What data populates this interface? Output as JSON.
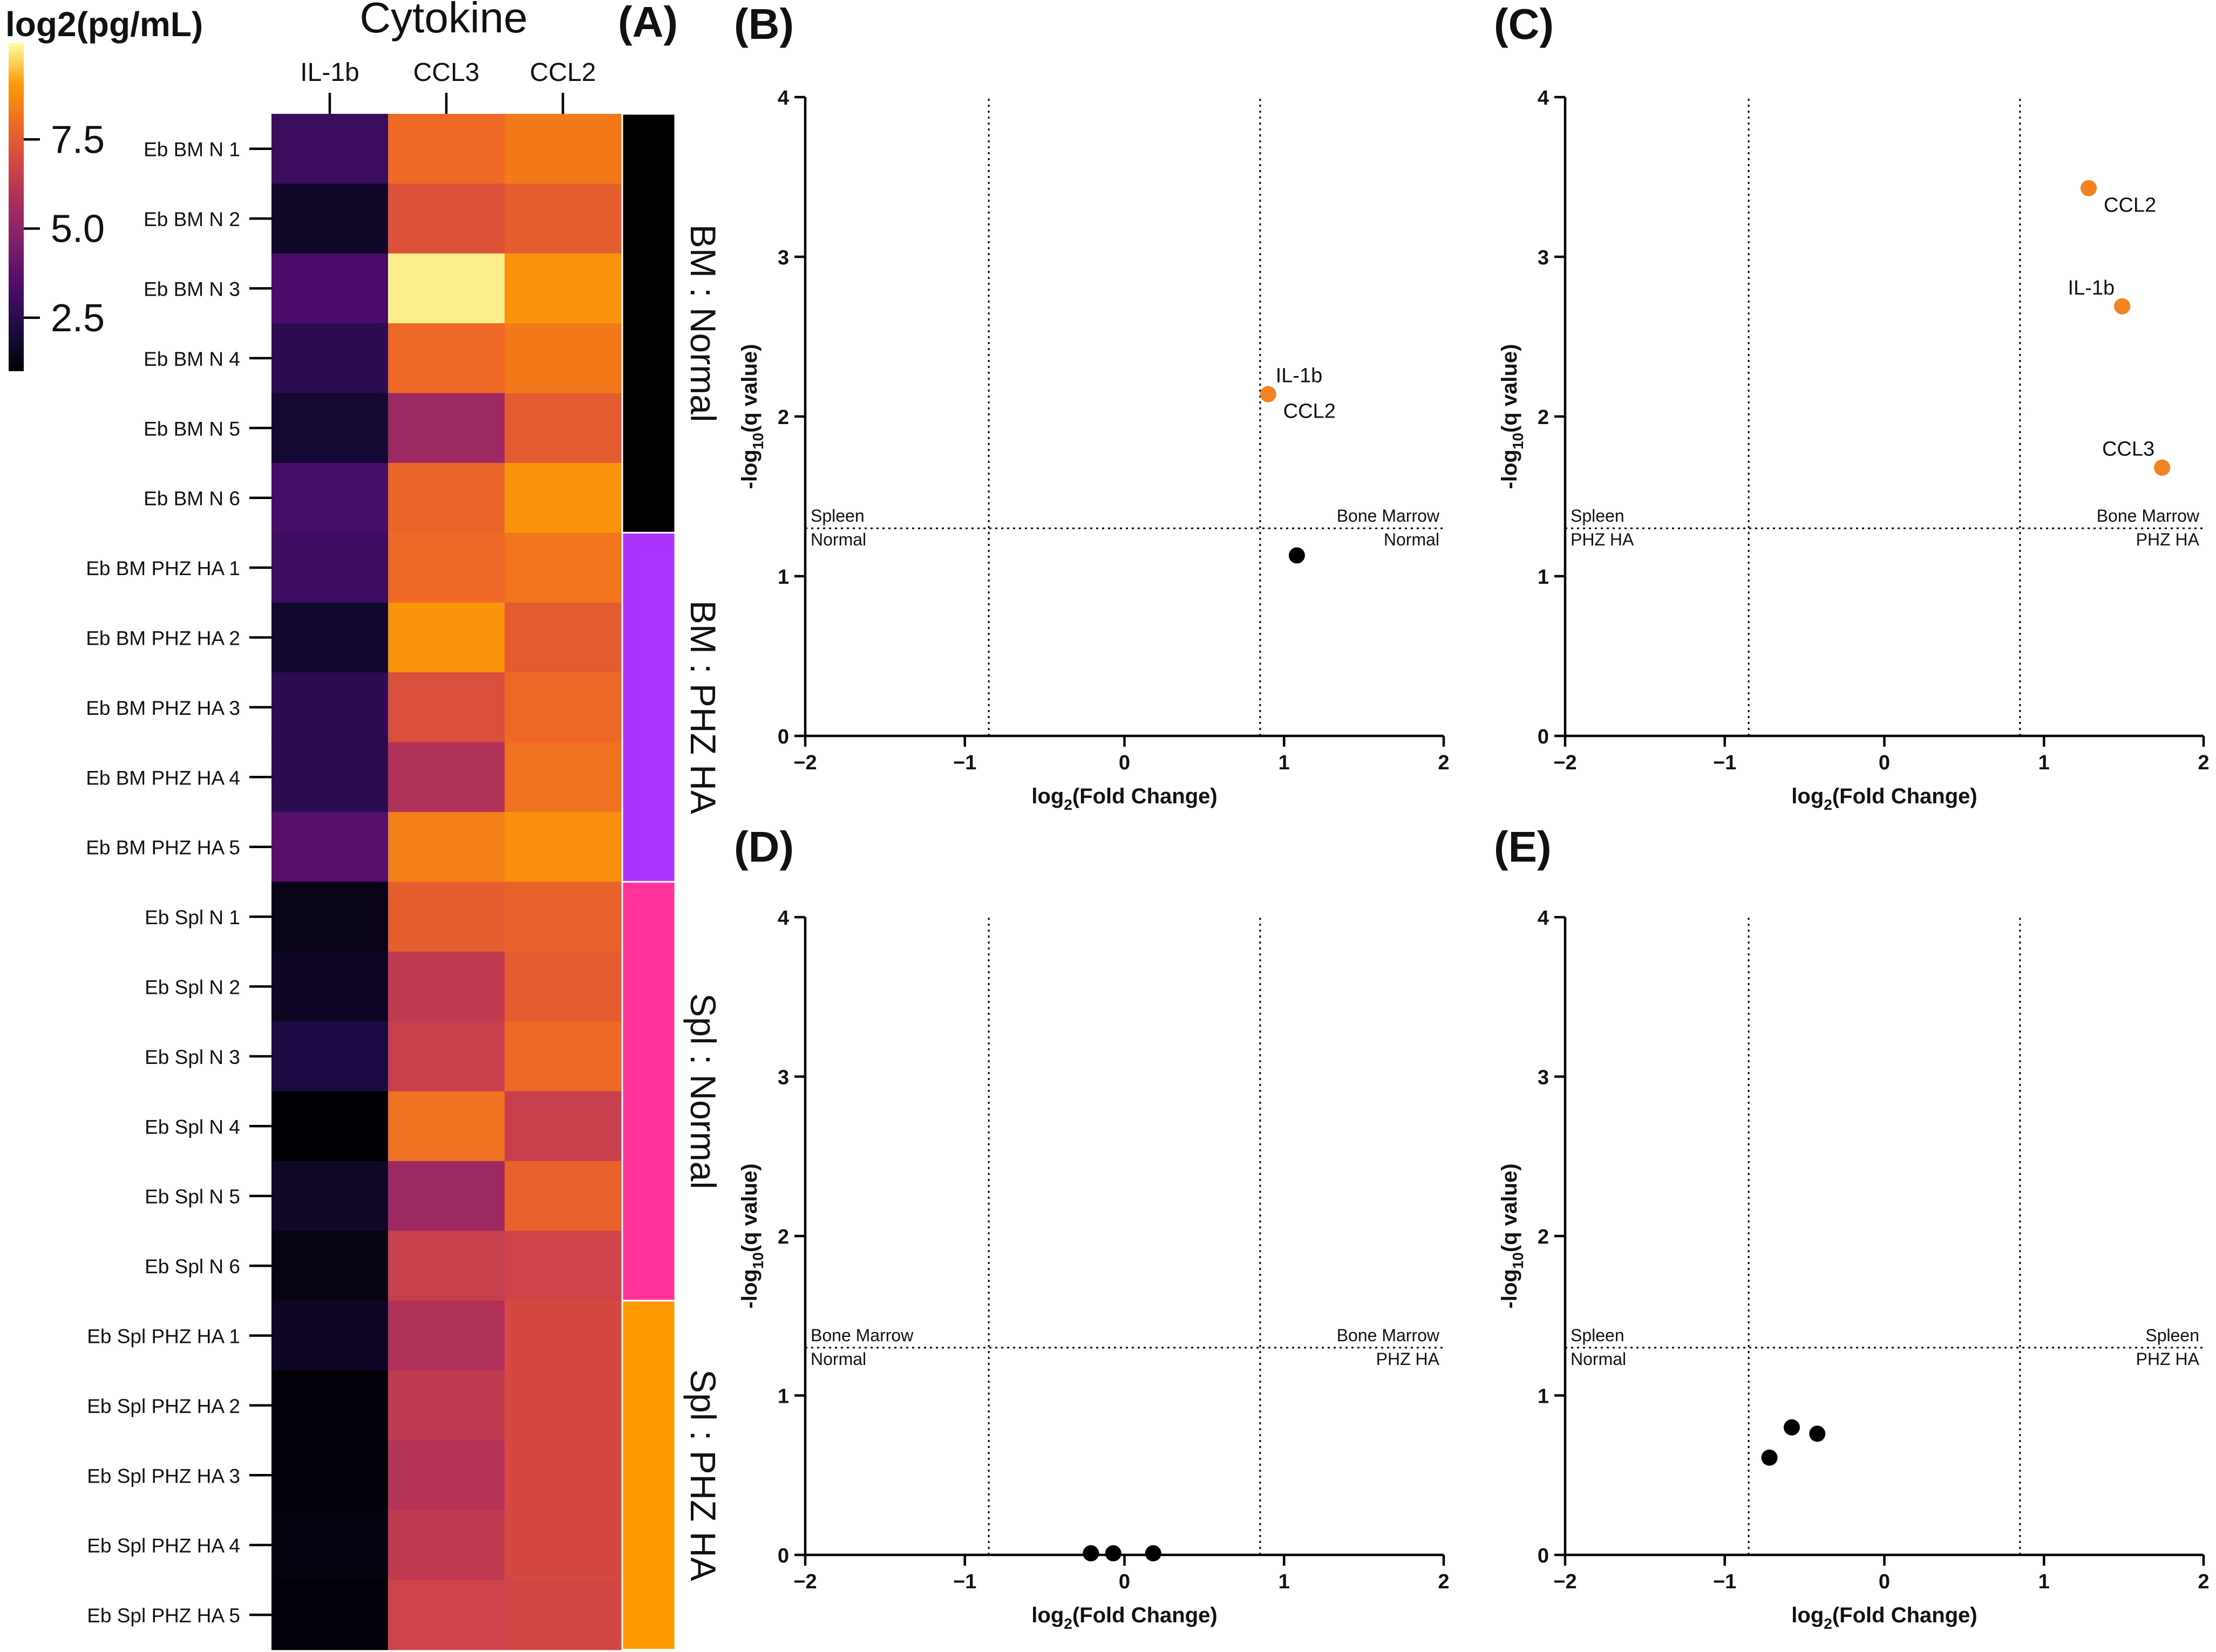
{
  "chart_data": [
    {
      "type": "heatmap",
      "panel_label": "(A)",
      "title": "Cytokine",
      "colorbar": {
        "label": "log2(pg/mL)",
        "ticks": [
          "7.5",
          "5.0",
          "2.5"
        ],
        "tick_values": [
          7.5,
          5.0,
          2.5
        ],
        "range": [
          1.0,
          10.2
        ],
        "colormap": "inferno"
      },
      "columns": [
        "IL-1b",
        "CCL3",
        "CCL2"
      ],
      "rows": [
        "Eb BM N 1",
        "Eb BM N 2",
        "Eb BM N 3",
        "Eb BM N 4",
        "Eb BM N 5",
        "Eb BM N 6",
        "Eb BM PHZ HA 1",
        "Eb BM PHZ HA 2",
        "Eb BM PHZ HA 3",
        "Eb BM PHZ HA 4",
        "Eb BM PHZ HA 5",
        "Eb Spl N 1",
        "Eb Spl N 2",
        "Eb Spl N 3",
        "Eb Spl N 4",
        "Eb Spl N 5",
        "Eb Spl N 6",
        "Eb Spl PHZ HA 1",
        "Eb Spl PHZ HA 2",
        "Eb Spl PHZ HA 3",
        "Eb Spl PHZ HA 4",
        "Eb Spl PHZ HA 5"
      ],
      "values": [
        [
          2.9,
          7.9,
          8.3
        ],
        [
          1.7,
          7.2,
          7.6
        ],
        [
          3.3,
          10.0,
          8.9
        ],
        [
          2.6,
          7.9,
          8.3
        ],
        [
          1.9,
          5.4,
          7.5
        ],
        [
          3.2,
          7.8,
          8.9
        ],
        [
          3.0,
          7.9,
          8.2
        ],
        [
          1.8,
          8.9,
          7.5
        ],
        [
          2.6,
          7.1,
          7.9
        ],
        [
          2.6,
          5.9,
          8.1
        ],
        [
          3.6,
          8.4,
          8.8
        ],
        [
          1.4,
          7.6,
          7.7
        ],
        [
          1.6,
          6.3,
          7.5
        ],
        [
          2.2,
          6.5,
          7.9
        ],
        [
          1.0,
          8.1,
          6.5
        ],
        [
          1.7,
          5.4,
          7.7
        ],
        [
          1.3,
          6.5,
          6.7
        ],
        [
          1.6,
          5.9,
          6.9
        ],
        [
          1.1,
          6.3,
          6.9
        ],
        [
          1.1,
          6.0,
          6.9
        ],
        [
          1.2,
          6.3,
          6.9
        ],
        [
          1.1,
          6.7,
          6.8
        ]
      ],
      "groups": [
        {
          "label": "BM : Normal",
          "rows": 6,
          "color": "#000000"
        },
        {
          "label": "BM : PHZ HA",
          "rows": 5,
          "color": "#aa33ff"
        },
        {
          "label": "Spl : Normal",
          "rows": 6,
          "color": "#ff3399"
        },
        {
          "label": "Spl : PHZ HA",
          "rows": 5,
          "color": "#ff9900"
        }
      ]
    },
    {
      "type": "scatter",
      "panel_label": "(B)",
      "xlabel_main": "log",
      "xlabel_sub": "2",
      "xlabel_rest": "(Fold Change)",
      "ylabel_main": "-log",
      "ylabel_sub": "10",
      "ylabel_rest": "(q value)",
      "xlim": [
        -2,
        2
      ],
      "ylim": [
        0,
        4
      ],
      "xticks": [
        -2,
        -1,
        0,
        1,
        2
      ],
      "yticks": [
        0,
        1,
        2,
        3,
        4
      ],
      "xtick_labels": [
        "−2",
        "−1",
        "0",
        "1",
        "2"
      ],
      "ytick_labels": [
        "0",
        "1",
        "2",
        "3",
        "4"
      ],
      "vlines": [
        -0.85,
        0.85
      ],
      "hline": 1.3,
      "corner_left": [
        "Spleen",
        "Normal"
      ],
      "corner_right": [
        "Bone Marrow",
        "Normal"
      ],
      "points": [
        {
          "x": 0.9,
          "y": 2.14,
          "color": "#f58220",
          "label": "IL-1b",
          "label_pos": "above-right"
        },
        {
          "x": 0.9,
          "y": 2.14,
          "color": "#f58220",
          "label": "CCL2",
          "label_pos": "below-right"
        },
        {
          "x": 1.08,
          "y": 1.13,
          "color": "#000000",
          "label": "",
          "label_pos": ""
        }
      ]
    },
    {
      "type": "scatter",
      "panel_label": "(C)",
      "xlabel_main": "log",
      "xlabel_sub": "2",
      "xlabel_rest": "(Fold Change)",
      "ylabel_main": "-log",
      "ylabel_sub": "10",
      "ylabel_rest": "(q value)",
      "xlim": [
        -2,
        2
      ],
      "ylim": [
        0,
        4
      ],
      "xticks": [
        -2,
        -1,
        0,
        1,
        2
      ],
      "yticks": [
        0,
        1,
        2,
        3,
        4
      ],
      "xtick_labels": [
        "−2",
        "−1",
        "0",
        "1",
        "2"
      ],
      "ytick_labels": [
        "0",
        "1",
        "2",
        "3",
        "4"
      ],
      "vlines": [
        -0.85,
        0.85
      ],
      "hline": 1.3,
      "corner_left": [
        "Spleen",
        "PHZ HA"
      ],
      "corner_right": [
        "Bone Marrow",
        "PHZ HA"
      ],
      "points": [
        {
          "x": 1.28,
          "y": 3.43,
          "color": "#f58220",
          "label": "CCL2",
          "label_pos": "below-right"
        },
        {
          "x": 1.49,
          "y": 2.69,
          "color": "#f58220",
          "label": "IL-1b",
          "label_pos": "above-left"
        },
        {
          "x": 1.74,
          "y": 1.68,
          "color": "#f58220",
          "label": "CCL3",
          "label_pos": "above-left"
        }
      ]
    },
    {
      "type": "scatter",
      "panel_label": "(D)",
      "xlabel_main": "log",
      "xlabel_sub": "2",
      "xlabel_rest": "(Fold Change)",
      "ylabel_main": "-log",
      "ylabel_sub": "10",
      "ylabel_rest": "(q value)",
      "xlim": [
        -2,
        2
      ],
      "ylim": [
        0,
        4
      ],
      "xticks": [
        -2,
        -1,
        0,
        1,
        2
      ],
      "yticks": [
        0,
        1,
        2,
        3,
        4
      ],
      "xtick_labels": [
        "−2",
        "−1",
        "0",
        "1",
        "2"
      ],
      "ytick_labels": [
        "0",
        "1",
        "2",
        "3",
        "4"
      ],
      "vlines": [
        -0.85,
        0.85
      ],
      "hline": 1.3,
      "corner_left": [
        "Bone Marrow",
        "Normal"
      ],
      "corner_right": [
        "Bone Marrow",
        "PHZ HA"
      ],
      "points": [
        {
          "x": -0.21,
          "y": 0.01,
          "color": "#000000",
          "label": "",
          "label_pos": ""
        },
        {
          "x": -0.07,
          "y": 0.01,
          "color": "#000000",
          "label": "",
          "label_pos": ""
        },
        {
          "x": 0.18,
          "y": 0.01,
          "color": "#000000",
          "label": "",
          "label_pos": ""
        }
      ]
    },
    {
      "type": "scatter",
      "panel_label": "(E)",
      "xlabel_main": "log",
      "xlabel_sub": "2",
      "xlabel_rest": "(Fold Change)",
      "ylabel_main": "-log",
      "ylabel_sub": "10",
      "ylabel_rest": "(q value)",
      "xlim": [
        -2,
        2
      ],
      "ylim": [
        0,
        4
      ],
      "xticks": [
        -2,
        -1,
        0,
        1,
        2
      ],
      "yticks": [
        0,
        1,
        2,
        3,
        4
      ],
      "xtick_labels": [
        "−2",
        "−1",
        "0",
        "1",
        "2"
      ],
      "ytick_labels": [
        "0",
        "1",
        "2",
        "3",
        "4"
      ],
      "vlines": [
        -0.85,
        0.85
      ],
      "hline": 1.3,
      "corner_left": [
        "Spleen",
        "Normal"
      ],
      "corner_right": [
        "Spleen",
        "PHZ HA"
      ],
      "points": [
        {
          "x": -0.72,
          "y": 0.61,
          "color": "#000000",
          "label": "",
          "label_pos": ""
        },
        {
          "x": -0.58,
          "y": 0.8,
          "color": "#000000",
          "label": "",
          "label_pos": ""
        },
        {
          "x": -0.42,
          "y": 0.76,
          "color": "#000000",
          "label": "",
          "label_pos": ""
        }
      ]
    }
  ]
}
